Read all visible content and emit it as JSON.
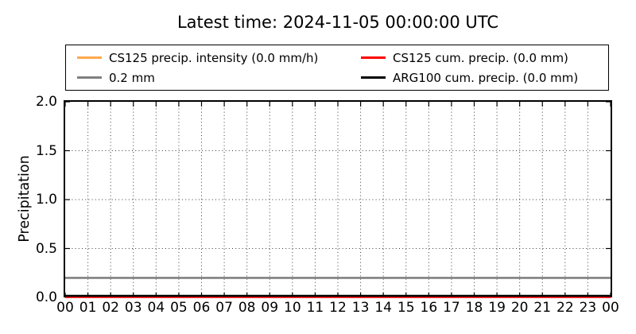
{
  "chart_data": {
    "type": "line",
    "title": "Latest time: 2024-11-05 00:00:00 UTC",
    "xlabel": "",
    "ylabel": "Precipitation",
    "ylim": [
      0.0,
      2.0
    ],
    "yticks": [
      0.0,
      0.5,
      1.0,
      1.5,
      2.0
    ],
    "xticklabels": [
      "00",
      "01",
      "02",
      "03",
      "04",
      "05",
      "06",
      "07",
      "08",
      "09",
      "10",
      "11",
      "12",
      "13",
      "14",
      "15",
      "16",
      "17",
      "18",
      "19",
      "20",
      "21",
      "22",
      "23",
      "00"
    ],
    "grid": true,
    "grid_linestyle": "dotted",
    "legend": {
      "position": "upper center",
      "ncols": 2
    },
    "series": [
      {
        "name": "CS125 precip. intensity (0.0 mm/h)",
        "color": "#FFA94D",
        "constant_value": 0.0
      },
      {
        "name": "CS125 cum. precip. (0.0 mm)",
        "color": "#FF0000",
        "constant_value": 0.0
      },
      {
        "name": "0.2 mm",
        "color": "#808080",
        "constant_value": 0.2
      },
      {
        "name": "ARG100 cum. precip. (0.0 mm)",
        "color": "#000000",
        "constant_value": 0.0
      }
    ]
  }
}
